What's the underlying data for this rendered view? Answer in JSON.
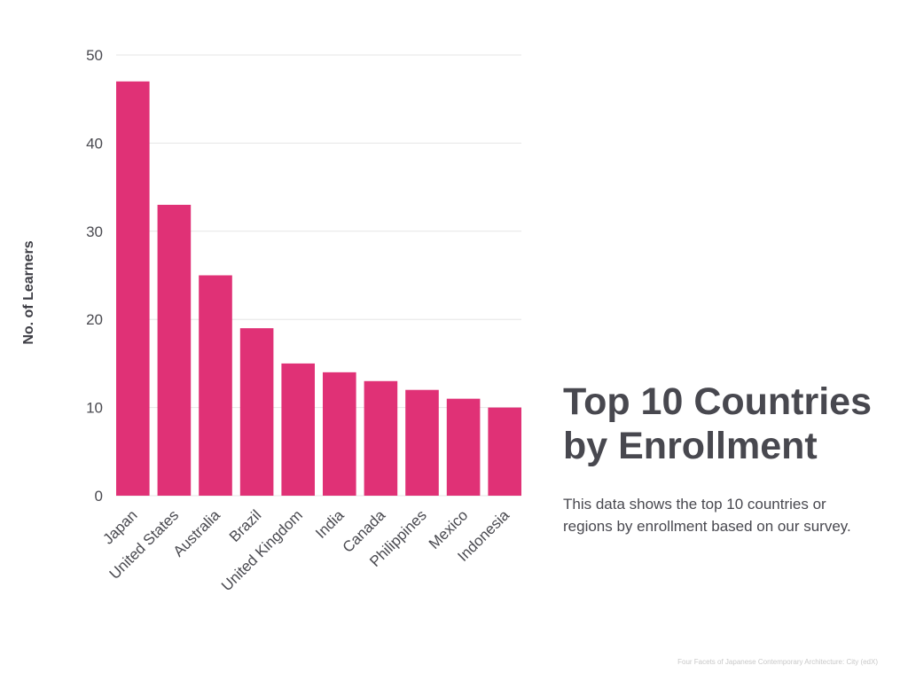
{
  "heading": {
    "title_line1": "Top 10 Countries",
    "title_line2": "by Enrollment",
    "description_line1": "This data shows the top 10 countries or",
    "description_line2": "regions by enrollment based on our survey."
  },
  "credit": "Four Facets of Japanese Contemporary Architecture: City (edX)",
  "colors": {
    "bar": "#e03176",
    "grid": "#e6e6e6",
    "text": "#48484f"
  },
  "chart_data": {
    "type": "bar",
    "categories": [
      "Japan",
      "United States",
      "Australia",
      "Brazil",
      "United Kingdom",
      "India",
      "Canada",
      "Philippines",
      "Mexico",
      "Indonesia"
    ],
    "values": [
      47,
      33,
      25,
      19,
      15,
      14,
      13,
      12,
      11,
      10
    ],
    "title": "Top 10 Countries by Enrollment",
    "xlabel": "",
    "ylabel": "No. of Learners",
    "ylim": [
      0,
      50
    ],
    "yticks": [
      "0",
      "10",
      "20",
      "30",
      "40",
      "50"
    ],
    "grid": true,
    "legend": "none"
  }
}
